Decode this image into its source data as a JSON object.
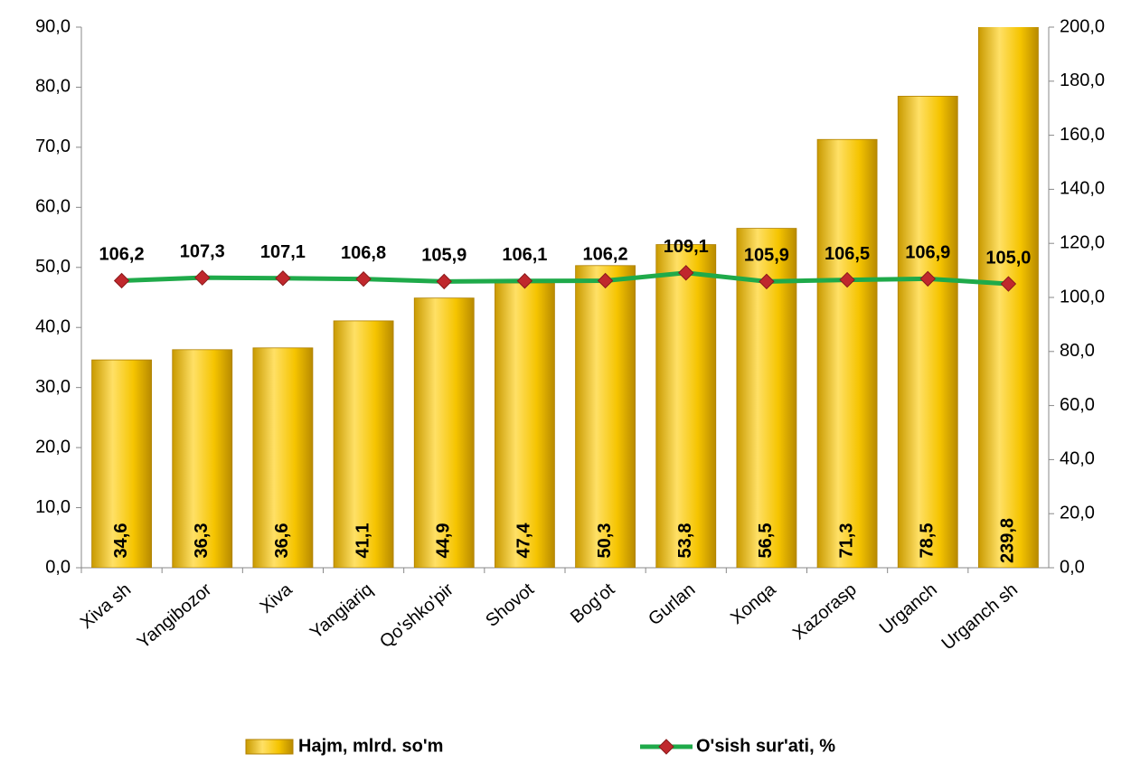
{
  "chart_data": {
    "type": "bar_line",
    "categories": [
      "Xiva sh",
      "Yangibozor",
      "Xiva",
      "Yangiariq",
      "Qo'shko'pir",
      "Shovot",
      "Bog'ot",
      "Gurlan",
      "Xonqa",
      "Xazorasp",
      "Urganch",
      "Urganch sh"
    ],
    "series": [
      {
        "name": "Hajm, mlrd. so'm",
        "type": "bar",
        "color": "#f5c400",
        "values": [
          34.6,
          36.3,
          36.6,
          41.1,
          44.9,
          47.4,
          50.3,
          53.8,
          56.5,
          71.3,
          78.5,
          239.8
        ],
        "value_labels": [
          "34,6",
          "36,3",
          "36,6",
          "41,1",
          "44,9",
          "47,4",
          "50,3",
          "53,8",
          "56,5",
          "71,3",
          "78,5",
          "239,8"
        ]
      },
      {
        "name": "O'sish sur'ati,  %",
        "type": "line",
        "axis": "y2",
        "color": "#1faa4a",
        "marker_color": "#c0282d",
        "values": [
          106.2,
          107.3,
          107.1,
          106.8,
          105.9,
          106.1,
          106.2,
          109.1,
          105.9,
          106.5,
          106.9,
          105.0
        ],
        "value_labels": [
          "106,2",
          "107,3",
          "107,1",
          "106,8",
          "105,9",
          "106,1",
          "106,2",
          "109,1",
          "105,9",
          "106,5",
          "106,9",
          "105,0"
        ]
      }
    ],
    "ylim": [
      0,
      90
    ],
    "yticks": [
      {
        "value": 0,
        "label": "0,0"
      },
      {
        "value": 10,
        "label": "10,0"
      },
      {
        "value": 20,
        "label": "20,0"
      },
      {
        "value": 30,
        "label": "30,0"
      },
      {
        "value": 40,
        "label": "40,0"
      },
      {
        "value": 50,
        "label": "50,0"
      },
      {
        "value": 60,
        "label": "60,0"
      },
      {
        "value": 70,
        "label": "70,0"
      },
      {
        "value": 80,
        "label": "80,0"
      },
      {
        "value": 90,
        "label": "90,0"
      }
    ],
    "y2lim": [
      0,
      200
    ],
    "y2ticks": [
      {
        "value": 0,
        "label": "0,0"
      },
      {
        "value": 20,
        "label": "20,0"
      },
      {
        "value": 40,
        "label": "40,0"
      },
      {
        "value": 60,
        "label": "60,0"
      },
      {
        "value": 80,
        "label": "80,0"
      },
      {
        "value": 100,
        "label": "100,0"
      },
      {
        "value": 120,
        "label": "120,0"
      },
      {
        "value": 140,
        "label": "140,0"
      },
      {
        "value": 160,
        "label": "160,0"
      },
      {
        "value": 180,
        "label": "180,0"
      },
      {
        "value": 200,
        "label": "200,0"
      }
    ],
    "legend": "bottom"
  }
}
